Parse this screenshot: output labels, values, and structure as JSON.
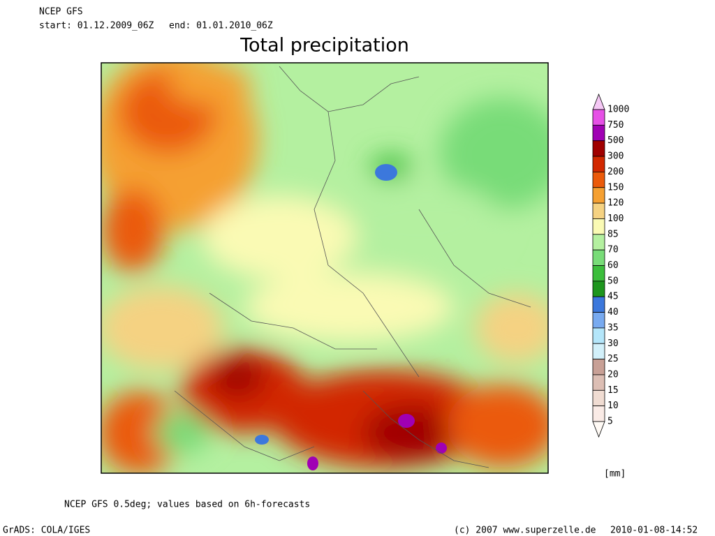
{
  "header": {
    "model": "NCEP GFS",
    "start": "start: 01.12.2009_06Z",
    "end": "end: 01.01.2010_06Z"
  },
  "title": "Total precipitation",
  "legend": {
    "unit": "[mm]",
    "levels": [
      {
        "label": "1000",
        "color": "#f5c8f5"
      },
      {
        "label": "750",
        "color": "#e650e6"
      },
      {
        "label": "500",
        "color": "#a000b4"
      },
      {
        "label": "300",
        "color": "#a00000"
      },
      {
        "label": "200",
        "color": "#d22800"
      },
      {
        "label": "150",
        "color": "#eb5a0a"
      },
      {
        "label": "120",
        "color": "#f5a032"
      },
      {
        "label": "100",
        "color": "#f5d282"
      },
      {
        "label": "85",
        "color": "#fafab4"
      },
      {
        "label": "70",
        "color": "#b4f0a0"
      },
      {
        "label": "60",
        "color": "#78dc78"
      },
      {
        "label": "50",
        "color": "#3cbe3c"
      },
      {
        "label": "45",
        "color": "#1e961e"
      },
      {
        "label": "40",
        "color": "#3c78dc"
      },
      {
        "label": "35",
        "color": "#78aaf0"
      },
      {
        "label": "30",
        "color": "#b4e6fa"
      },
      {
        "label": "25",
        "color": "#d2f0fa"
      },
      {
        "label": "20",
        "color": "#c8a096"
      },
      {
        "label": "15",
        "color": "#dcbeb4"
      },
      {
        "label": "10",
        "color": "#f0dcd2"
      },
      {
        "label": "5",
        "color": "#faebe6"
      }
    ]
  },
  "footer": {
    "note": "NCEP GFS 0.5deg; values based on 6h-forecasts",
    "software": "GrADS: COLA/IGES",
    "copyright": "(c) 2007 www.superzelle.de",
    "timestamp": "2010-01-08-14:52"
  }
}
